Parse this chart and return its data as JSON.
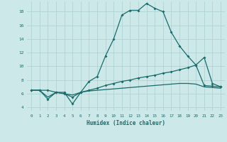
{
  "xlabel": "Humidex (Indice chaleur)",
  "bg_color": "#cce8e8",
  "grid_color": "#aacfcf",
  "line_color": "#1a6b6b",
  "x_min": -0.5,
  "x_max": 23.5,
  "y_min": 3.5,
  "y_max": 19.5,
  "line1_x": [
    0,
    1,
    2,
    3,
    4,
    5,
    6,
    7,
    8,
    9,
    10,
    11,
    12,
    13,
    14,
    15,
    16,
    17,
    18,
    19,
    20,
    21,
    22,
    23
  ],
  "line1_y": [
    6.5,
    6.5,
    6.5,
    6.2,
    6.2,
    4.5,
    6.2,
    7.8,
    8.5,
    11.5,
    14.0,
    17.5,
    18.2,
    18.2,
    19.2,
    18.5,
    18.0,
    15.0,
    13.0,
    11.5,
    10.2,
    11.3,
    7.5,
    7.0
  ],
  "line2_x": [
    0,
    1,
    2,
    3,
    4,
    5,
    6,
    7,
    8,
    9,
    10,
    11,
    12,
    13,
    14,
    15,
    16,
    17,
    18,
    19,
    20,
    21,
    22,
    23
  ],
  "line2_y": [
    6.5,
    6.5,
    5.2,
    6.2,
    6.0,
    5.5,
    6.2,
    6.5,
    6.8,
    7.2,
    7.5,
    7.8,
    8.0,
    8.3,
    8.5,
    8.7,
    9.0,
    9.2,
    9.5,
    9.8,
    10.2,
    7.2,
    7.1,
    7.0
  ],
  "line3_x": [
    0,
    1,
    2,
    3,
    4,
    5,
    6,
    7,
    8,
    9,
    10,
    11,
    12,
    13,
    14,
    15,
    16,
    17,
    18,
    19,
    20,
    21,
    22,
    23
  ],
  "line3_y": [
    6.5,
    6.5,
    5.5,
    6.2,
    6.0,
    5.8,
    6.2,
    6.4,
    6.5,
    6.6,
    6.7,
    6.8,
    6.9,
    7.0,
    7.1,
    7.2,
    7.3,
    7.4,
    7.5,
    7.5,
    7.4,
    7.0,
    6.9,
    6.8
  ],
  "yticks": [
    4,
    6,
    8,
    10,
    12,
    14,
    16,
    18
  ],
  "xticks": [
    0,
    1,
    2,
    3,
    4,
    5,
    6,
    7,
    8,
    9,
    10,
    11,
    12,
    13,
    14,
    15,
    16,
    17,
    18,
    19,
    20,
    21,
    22,
    23
  ]
}
